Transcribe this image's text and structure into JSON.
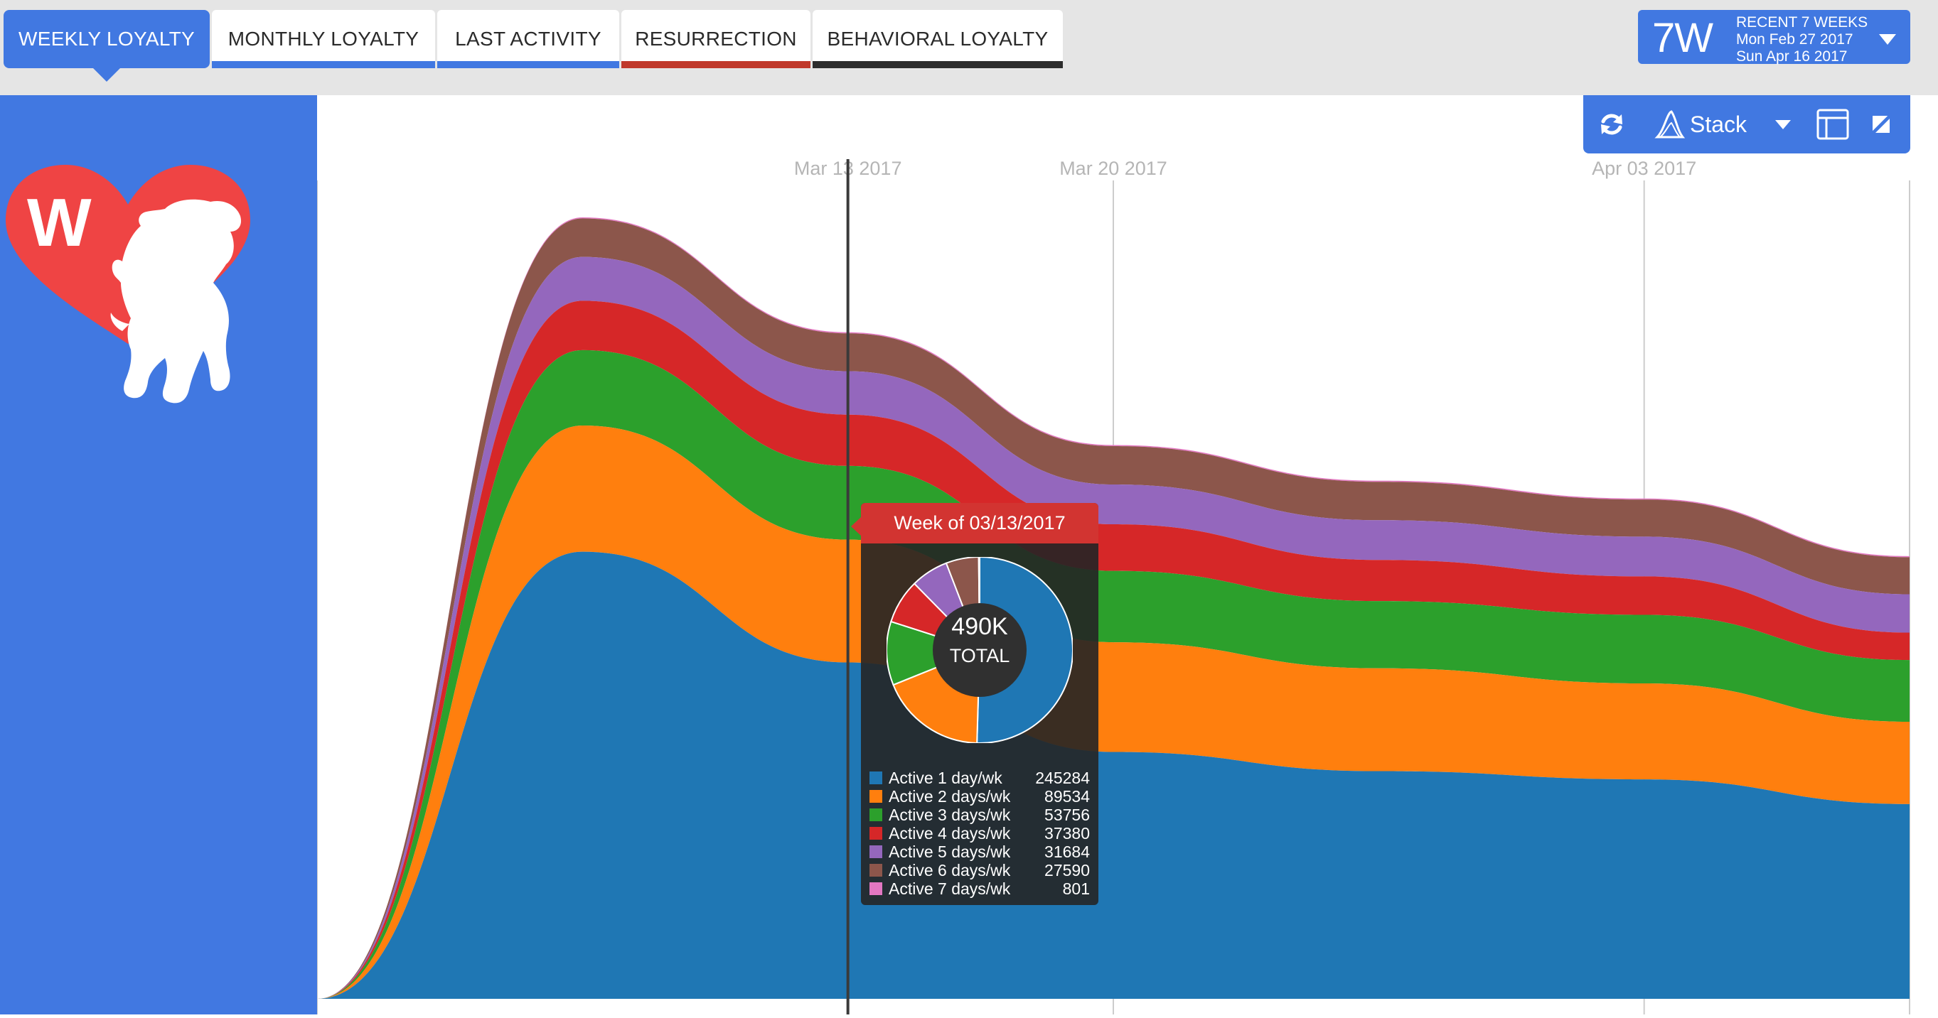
{
  "tabs": [
    {
      "label": "WEEKLY LOYALTY",
      "active": true,
      "underline": "#4178e1"
    },
    {
      "label": "MONTHLY LOYALTY",
      "active": false,
      "underline": "#4178e1"
    },
    {
      "label": "LAST ACTIVITY",
      "active": false,
      "underline": "#4178e1"
    },
    {
      "label": "RESURRECTION",
      "active": false,
      "underline": "#c0392b"
    },
    {
      "label": "BEHAVIORAL LOYALTY",
      "active": false,
      "underline": "#2d2d2d"
    }
  ],
  "date_range": {
    "code": "7W",
    "label": "RECENT 7 WEEKS",
    "start": "Mon Feb 27 2017",
    "end": "Sun Apr 16 2017"
  },
  "logo": {
    "letter": "W",
    "icon": "heart-dog-icon",
    "heart_color": "#ef4444"
  },
  "toolbar": {
    "refresh_icon": "refresh-icon",
    "chart_icon": "area-chart-icon",
    "mode_label": "Stack",
    "dropdown_icon": "caret-down-icon",
    "layout_icon": "layout-icon",
    "expand_icon": "expand-icon"
  },
  "chart_data": {
    "type": "area",
    "stacked": true,
    "x_tick_labels": [
      "Mar 13 2017",
      "Mar 20 2017",
      "Apr 03 2017"
    ],
    "x": [
      "2017-02-27",
      "2017-03-06",
      "2017-03-13",
      "2017-03-20",
      "2017-03-27",
      "2017-04-03",
      "2017-04-10"
    ],
    "series": [
      {
        "name": "Active 1 day/wk",
        "color": "#1f77b4",
        "values": [
          0,
          326000,
          245284,
          180000,
          166000,
          160000,
          142000
        ]
      },
      {
        "name": "Active 2 days/wk",
        "color": "#ff7f0e",
        "values": [
          0,
          92000,
          89534,
          80000,
          75000,
          70000,
          60000
        ]
      },
      {
        "name": "Active 3 days/wk",
        "color": "#2ca02c",
        "values": [
          0,
          55000,
          53756,
          52000,
          49000,
          50000,
          45000
        ]
      },
      {
        "name": "Active 4 days/wk",
        "color": "#d62728",
        "values": [
          0,
          36000,
          37380,
          34000,
          30000,
          28000,
          20000
        ]
      },
      {
        "name": "Active 5 days/wk",
        "color": "#9467bd",
        "values": [
          0,
          32000,
          31684,
          29000,
          29000,
          29000,
          28000
        ]
      },
      {
        "name": "Active 6 days/wk",
        "color": "#8c564b",
        "values": [
          0,
          28000,
          27590,
          28000,
          28000,
          27000,
          27000
        ]
      },
      {
        "name": "Active 7 days/wk",
        "color": "#e377c2",
        "values": [
          0,
          800,
          801,
          800,
          800,
          800,
          800
        ]
      }
    ],
    "grid": "vertical-only",
    "hover_week": "2017-03-13"
  },
  "tooltip": {
    "title": "Week of 03/13/2017",
    "total_display": "490K",
    "total_label": "TOTAL",
    "rows": [
      {
        "label": "Active 1 day/wk",
        "value": 245284,
        "color": "#1f77b4"
      },
      {
        "label": "Active 2 days/wk",
        "value": 89534,
        "color": "#ff7f0e"
      },
      {
        "label": "Active 3 days/wk",
        "value": 53756,
        "color": "#2ca02c"
      },
      {
        "label": "Active 4 days/wk",
        "value": 37380,
        "color": "#d62728"
      },
      {
        "label": "Active 5 days/wk",
        "value": 31684,
        "color": "#9467bd"
      },
      {
        "label": "Active 6 days/wk",
        "value": 27590,
        "color": "#8c564b"
      },
      {
        "label": "Active 7 days/wk",
        "value": 801,
        "color": "#e377c2"
      }
    ]
  }
}
